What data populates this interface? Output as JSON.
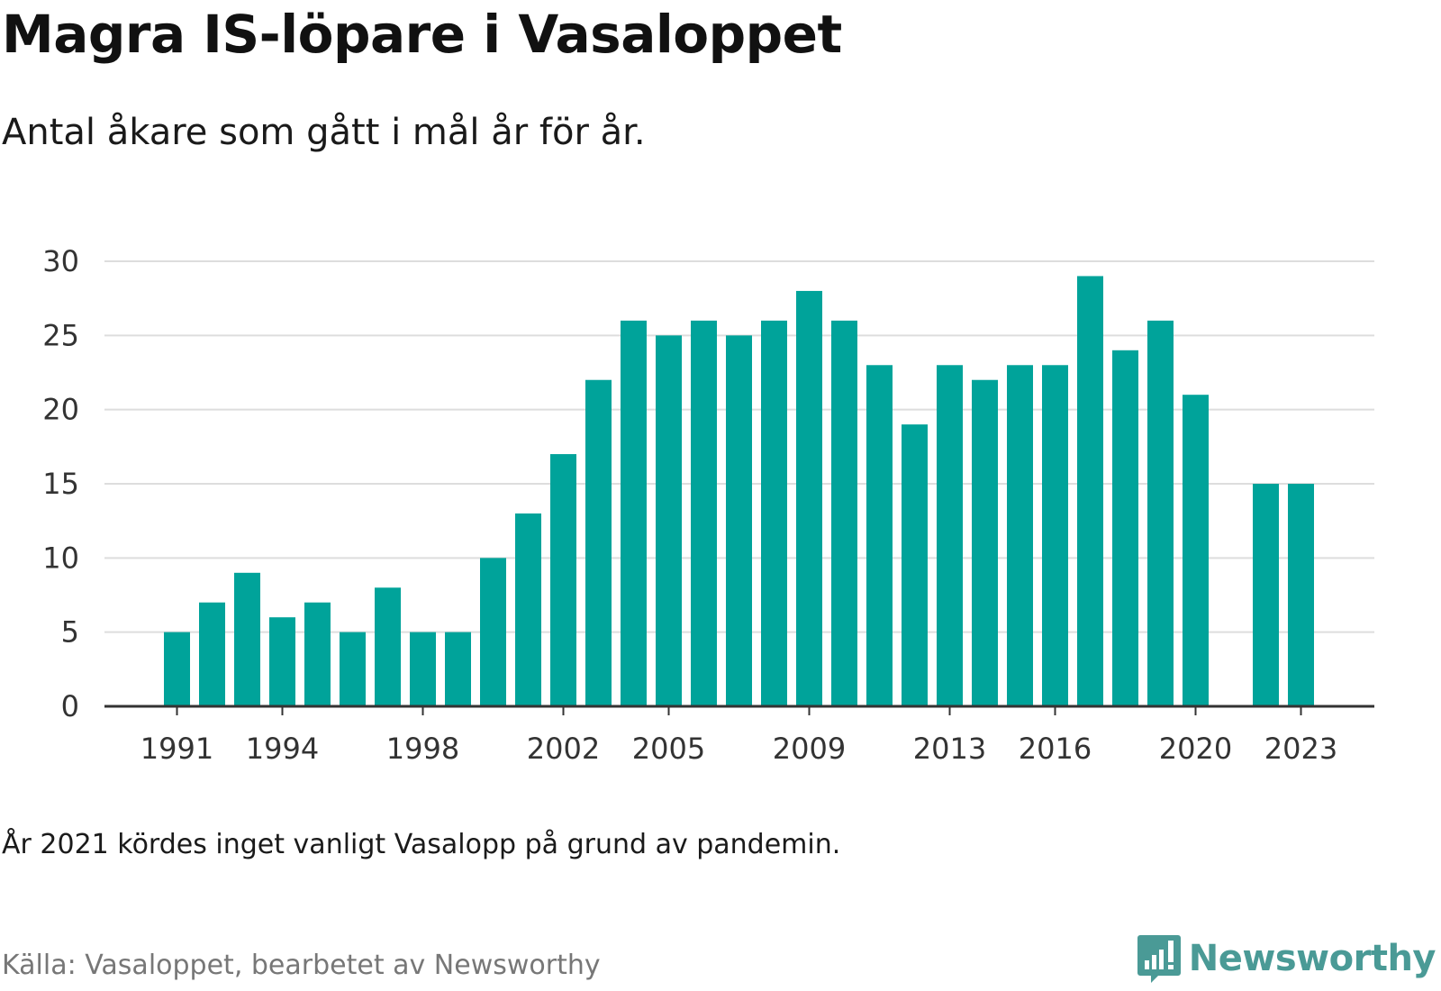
{
  "header": {
    "title": "Magra IS-löpare i Vasaloppet",
    "subtitle": "Antal åkare som gått i mål år för år."
  },
  "footer": {
    "note": "År 2021 kördes inget vanligt Vasalopp på grund av pandemin.",
    "source": "Källa: Vasaloppet, bearbetet av Newsworthy",
    "brand": "Newsworthy"
  },
  "colors": {
    "bar": "#00a39a",
    "grid": "#dddddd",
    "axis": "#333333",
    "brand": "#4a9a96"
  },
  "icons": {
    "brand_logo": "newsworthy-logo-icon"
  },
  "chart_data": {
    "type": "bar",
    "title": "Magra IS-löpare i Vasaloppet",
    "subtitle": "Antal åkare som gått i mål år för år.",
    "xlabel": "",
    "ylabel": "",
    "categories": [
      1991,
      1992,
      1993,
      1994,
      1995,
      1996,
      1997,
      1998,
      1999,
      2000,
      2001,
      2002,
      2003,
      2004,
      2005,
      2006,
      2007,
      2008,
      2009,
      2010,
      2011,
      2012,
      2013,
      2014,
      2015,
      2016,
      2017,
      2018,
      2019,
      2020,
      2021,
      2022,
      2023
    ],
    "values": [
      5,
      7,
      9,
      6,
      7,
      5,
      8,
      5,
      5,
      10,
      13,
      17,
      22,
      26,
      25,
      26,
      25,
      26,
      28,
      26,
      23,
      19,
      23,
      22,
      23,
      23,
      29,
      24,
      26,
      21,
      null,
      15,
      15
    ],
    "x_tick_labels": [
      "1991",
      "1994",
      "1998",
      "2002",
      "2005",
      "2009",
      "2013",
      "2016",
      "2020",
      "2023"
    ],
    "y_ticks": [
      0,
      5,
      10,
      15,
      20,
      25,
      30
    ],
    "ylim": [
      0,
      30
    ],
    "grid": true,
    "legend": false
  }
}
